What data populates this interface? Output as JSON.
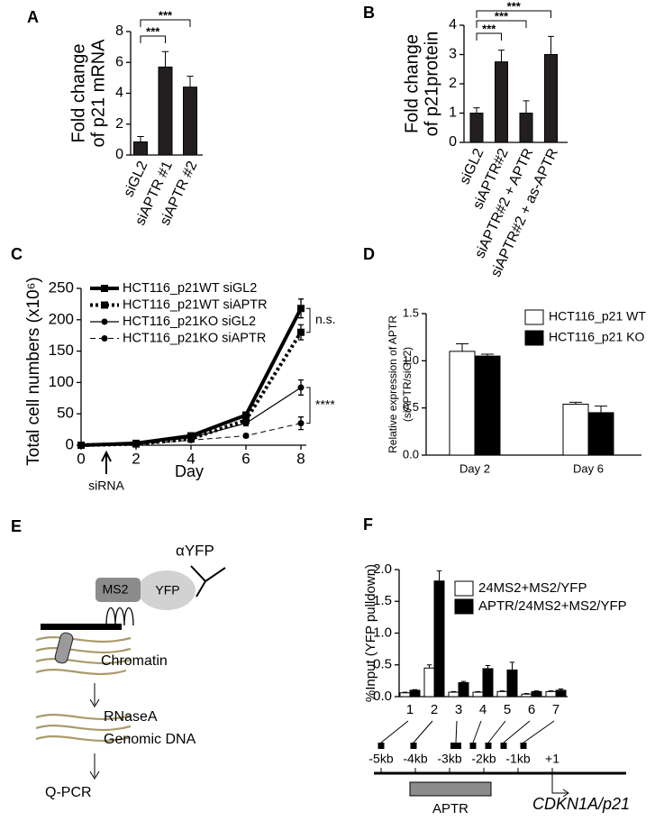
{
  "panel_labels": [
    "A",
    "B",
    "C",
    "D",
    "E",
    "F"
  ],
  "chart_data": [
    {
      "type": "bar",
      "ylabel": [
        "Fold change",
        "of p21 mRNA"
      ],
      "categories": [
        "siGL2",
        "siAPTR #1",
        "siAPTR #2"
      ],
      "values": [
        0.85,
        5.7,
        4.4
      ],
      "errors": [
        0.35,
        1.0,
        0.7
      ],
      "color": "#231f20",
      "ylim": [
        0,
        8
      ],
      "yticks": [
        0,
        2,
        4,
        6,
        8
      ],
      "annotations": [
        "***",
        "***"
      ]
    },
    {
      "type": "bar",
      "ylabel": [
        "Fold change",
        "of p21protein"
      ],
      "categories": [
        "siGL2",
        "siAPTR#2",
        "siAPTR#2 + APTR",
        "siAPTR#2 + as-APTR"
      ],
      "values": [
        1.0,
        2.75,
        1.0,
        3.0
      ],
      "errors": [
        0.18,
        0.4,
        0.42,
        0.62
      ],
      "color": "#231f20",
      "ylim": [
        0,
        4
      ],
      "yticks": [
        0,
        1,
        2,
        3,
        4
      ],
      "annotations": [
        "***",
        "***",
        "***"
      ]
    },
    {
      "type": "line",
      "ylabel": "Total cell numbers (x10⁶)",
      "xlabel": "Day",
      "x": [
        0,
        2,
        4,
        6,
        8
      ],
      "xlim": [
        0,
        8
      ],
      "xticks": [
        0,
        2,
        4,
        6,
        8
      ],
      "ylim": [
        0,
        250
      ],
      "yticks": [
        0,
        50,
        100,
        150,
        200,
        250
      ],
      "series": [
        {
          "name": "HCT116_p21WT siGL2",
          "color": "#000000",
          "line_style": "solid",
          "line_width": 4,
          "marker": "square",
          "values": [
            0,
            3,
            15,
            48,
            218
          ],
          "errors": [
            0,
            1,
            2,
            5,
            15
          ]
        },
        {
          "name": "HCT116_p21WT siAPTR",
          "color": "#000000",
          "line_style": "dotted",
          "line_width": 4,
          "marker": "square",
          "values": [
            0,
            2,
            10,
            40,
            180
          ],
          "errors": [
            0,
            1,
            2,
            4,
            12
          ]
        },
        {
          "name": "HCT116_p21KO siGL2",
          "color": "#000000",
          "line_style": "solid",
          "line_width": 1.2,
          "marker": "circle",
          "values": [
            0,
            2,
            12,
            35,
            92
          ],
          "errors": [
            0,
            1,
            2,
            4,
            12
          ]
        },
        {
          "name": "HCT116_p21KO siAPTR",
          "color": "#000000",
          "line_style": "dashed",
          "line_width": 1,
          "marker": "circle",
          "values": [
            0,
            1,
            8,
            15,
            35
          ],
          "errors": [
            0,
            1,
            1,
            3,
            10
          ]
        }
      ],
      "annotations": [
        "n.s.",
        "****",
        "siRNA"
      ]
    },
    {
      "type": "bar",
      "ylabel": [
        "Relative expression of APTR",
        "(siAPTR/siGL2)"
      ],
      "categories": [
        "Day 2",
        "Day 6"
      ],
      "series": [
        {
          "name": "HCT116_p21 WT",
          "color": "#ffffff",
          "values": [
            1.1,
            0.54
          ],
          "errors": [
            0.08,
            0.02
          ]
        },
        {
          "name": "HCT116_p21 KO",
          "color": "#000000",
          "values": [
            1.05,
            0.45
          ],
          "errors": [
            0.02,
            0.07
          ]
        }
      ],
      "ylim": [
        0,
        1.5
      ],
      "yticks": [
        {
          "value": 0,
          "label": "0.0"
        },
        0.5,
        {
          "value": 1,
          "label": "1.0"
        },
        1.5
      ]
    },
    {
      "type": "bar",
      "ylabel": [
        "%Input (YFP pulldown)"
      ],
      "categories": [
        "1",
        "2",
        "3",
        "4",
        "5",
        "6",
        "7"
      ],
      "series": [
        {
          "name": "24MS2+MS2/YFP",
          "color": "#ffffff",
          "values": [
            0.06,
            0.45,
            0.07,
            0.07,
            0.08,
            0.04,
            0.08
          ],
          "errors": [
            0.01,
            0.05,
            0.01,
            0.01,
            0.01,
            0.01,
            0.01
          ]
        },
        {
          "name": "APTR/24MS2+MS2/YFP",
          "color": "#000000",
          "values": [
            0.1,
            1.82,
            0.22,
            0.44,
            0.42,
            0.08,
            0.1
          ],
          "errors": [
            0.01,
            0.16,
            0.02,
            0.05,
            0.12,
            0.01,
            0.02
          ]
        }
      ],
      "ylim": [
        0,
        2
      ],
      "yticks": [
        {
          "value": 0,
          "label": "0.0"
        },
        0.5,
        {
          "value": 1,
          "label": "1.0"
        },
        1.5,
        {
          "value": 2,
          "label": "2.0"
        }
      ]
    }
  ],
  "diagram": {
    "antibody": "αYFP",
    "tag": "MS2",
    "protein": "YFP",
    "chromatin": "Chromatin",
    "enzyme": "RNaseA",
    "dna": "Genomic DNA",
    "readout": "Q-PCR"
  },
  "gene_map": {
    "ticks": [
      "-5kb",
      "-4kb",
      "-3kb",
      "-2kb",
      "-1kb",
      "+1"
    ],
    "region": "APTR",
    "gene": "CDKN1A/p21"
  }
}
